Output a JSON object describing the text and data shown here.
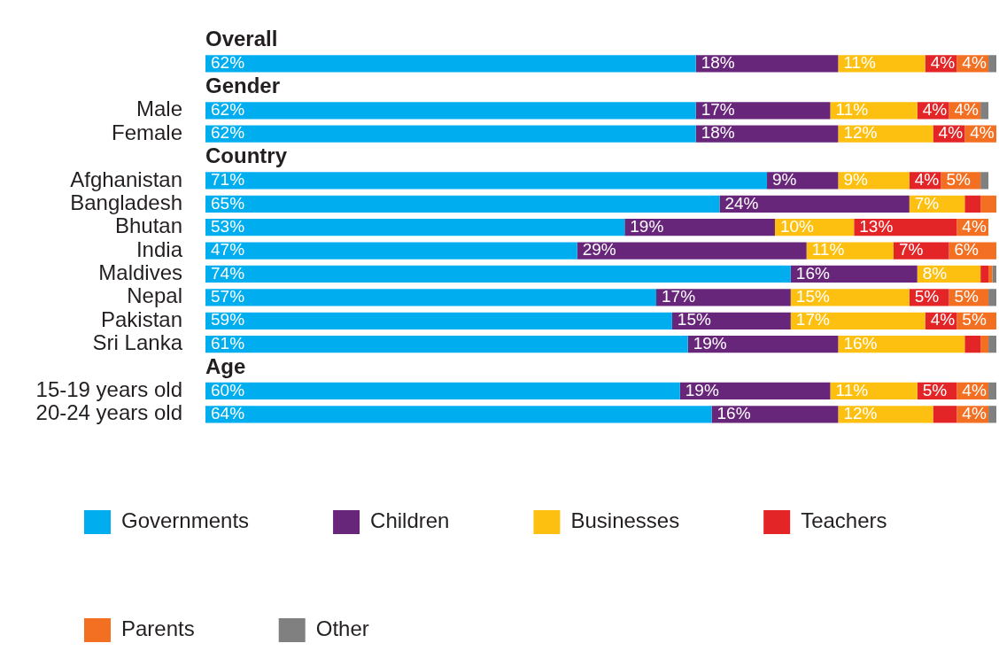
{
  "chart_data": {
    "type": "bar",
    "orientation": "horizontal",
    "stacked": true,
    "xlim": [
      0,
      100
    ],
    "tick_labels": "y",
    "legend": "bottom",
    "categories": [
      "Overall",
      null,
      "Gender",
      "Male",
      "Female",
      "Country",
      "Afghanistan",
      "Bangladesh",
      "Bhutan",
      "India",
      "Maldives",
      "Nepal",
      "Pakistan",
      "Sri Lanka",
      "Age",
      "15-19 years old",
      "20-24 years old"
    ],
    "series": [
      {
        "name": "Governments",
        "color": "#00aeef",
        "values": [
          null,
          62,
          null,
          62,
          62,
          null,
          71,
          65,
          53,
          47,
          74,
          57,
          59,
          61,
          null,
          60,
          64
        ],
        "value_labels": [
          null,
          "62%",
          null,
          "62%",
          "62%",
          null,
          "71%",
          "65%",
          "53%",
          "47%",
          "74%",
          "57%",
          "59%",
          "61%",
          null,
          "60%",
          "64%"
        ]
      },
      {
        "name": "Children",
        "color": "#68267a",
        "values": [
          null,
          18,
          null,
          17,
          18,
          null,
          9,
          24,
          19,
          29,
          16,
          17,
          15,
          19,
          null,
          19,
          16
        ],
        "value_labels": [
          null,
          "18%",
          null,
          "17%",
          "18%",
          null,
          "9%",
          "24%",
          "19%",
          "29%",
          "16%",
          "17%",
          "15%",
          "19%",
          null,
          "19%",
          "16%"
        ]
      },
      {
        "name": "Businesses",
        "color": "#fdc010",
        "values": [
          null,
          11,
          null,
          11,
          12,
          null,
          9,
          7,
          10,
          11,
          8,
          15,
          17,
          16,
          null,
          11,
          12
        ],
        "value_labels": [
          null,
          "11%",
          null,
          "11%",
          "12%",
          null,
          "9%",
          "7%",
          "10%",
          "11%",
          "8%",
          "15%",
          "17%",
          "16%",
          null,
          "11%",
          "12%"
        ]
      },
      {
        "name": "Teachers",
        "color": "#e42527",
        "values": [
          null,
          4,
          null,
          4,
          4,
          null,
          4,
          2,
          13,
          7,
          1,
          5,
          4,
          2,
          null,
          5,
          3
        ],
        "value_labels": [
          null,
          "4%",
          null,
          "4%",
          "4%",
          null,
          "4%",
          null,
          "13%",
          "7%",
          null,
          "5%",
          "4%",
          null,
          null,
          "5%",
          null
        ]
      },
      {
        "name": "Parents",
        "color": "#f36f21",
        "values": [
          null,
          4,
          null,
          4,
          4,
          null,
          5,
          2,
          4,
          6,
          0.5,
          5,
          5,
          1,
          null,
          4,
          4
        ],
        "value_labels": [
          null,
          "4%",
          null,
          "4%",
          "4%",
          null,
          "5%",
          null,
          "4%",
          "6%",
          null,
          "5%",
          "5%",
          null,
          null,
          "4%",
          "4%"
        ]
      },
      {
        "name": "Other",
        "color": "#808080",
        "values": [
          null,
          1,
          null,
          1,
          null,
          null,
          1,
          0,
          0,
          0,
          0.5,
          1,
          0,
          1,
          null,
          1,
          1
        ]
      }
    ]
  }
}
